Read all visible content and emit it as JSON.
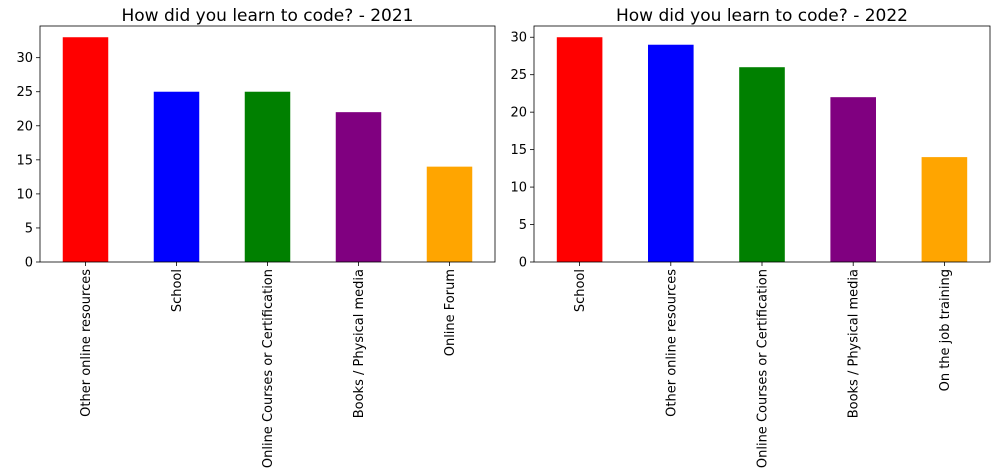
{
  "chart_data": [
    {
      "type": "bar",
      "title": "How did you learn to code? - 2021",
      "xlabel": "",
      "ylabel": "",
      "categories": [
        "Other online resources",
        "School",
        "Online Courses or Certification",
        "Books / Physical media",
        "Online Forum"
      ],
      "values": [
        33,
        25,
        25,
        22,
        14
      ],
      "colors": [
        "#ff0000",
        "#0000ff",
        "#008000",
        "#800080",
        "#ffa500"
      ],
      "ylim": [
        0,
        34.65
      ],
      "yticks": [
        0,
        5,
        10,
        15,
        20,
        25,
        30
      ],
      "grid": false,
      "legend": "none"
    },
    {
      "type": "bar",
      "title": "How did you learn to code? - 2022",
      "xlabel": "",
      "ylabel": "",
      "categories": [
        "School",
        "Other online resources",
        "Online Courses or Certification",
        "Books / Physical media",
        "On the job training"
      ],
      "values": [
        30,
        29,
        26,
        22,
        14
      ],
      "colors": [
        "#ff0000",
        "#0000ff",
        "#008000",
        "#800080",
        "#ffa500"
      ],
      "ylim": [
        0,
        31.5
      ],
      "yticks": [
        0,
        5,
        10,
        15,
        20,
        25,
        30
      ],
      "grid": false,
      "legend": "none"
    }
  ]
}
